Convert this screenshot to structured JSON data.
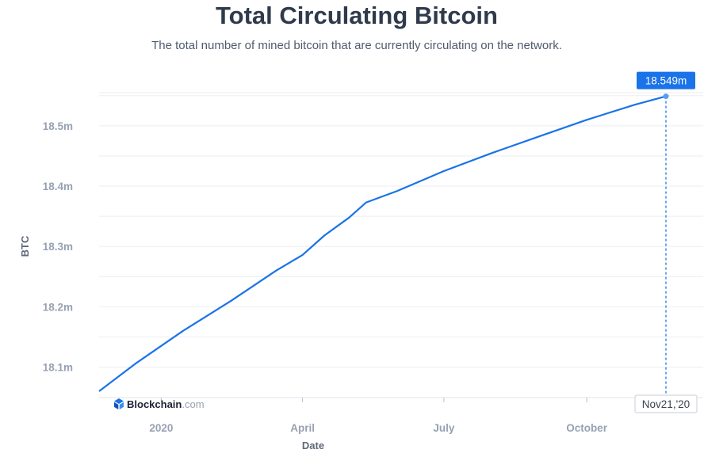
{
  "chart_data": {
    "type": "line",
    "title": "Total Circulating Bitcoin",
    "subtitle": "The total number of mined bitcoin that are currently circulating on the network.",
    "xlabel": "Date",
    "ylabel": "BTC",
    "ylim": [
      18.06,
      18.555
    ],
    "grid": true,
    "legend": "none",
    "x_ticks": [
      {
        "date": "2020-01-01",
        "label": "2020"
      },
      {
        "date": "2020-04-01",
        "label": "April"
      },
      {
        "date": "2020-07-01",
        "label": "July"
      },
      {
        "date": "2020-10-01",
        "label": "October"
      }
    ],
    "y_ticks": [
      {
        "value": 18.1,
        "label": "18.1m"
      },
      {
        "value": 18.2,
        "label": "18.2m"
      },
      {
        "value": 18.3,
        "label": "18.3m"
      },
      {
        "value": 18.4,
        "label": "18.4m"
      },
      {
        "value": 18.5,
        "label": "18.5m"
      }
    ],
    "x_range": [
      "2019-11-22",
      "2020-12-15"
    ],
    "series": [
      {
        "color": "#1a73e8",
        "x": [
          "2019-11-22",
          "2019-12-15",
          "2020-01-15",
          "2020-02-15",
          "2020-03-15",
          "2020-04-01",
          "2020-04-15",
          "2020-05-01",
          "2020-05-12",
          "2020-06-01",
          "2020-07-01",
          "2020-08-01",
          "2020-09-01",
          "2020-10-01",
          "2020-11-01",
          "2020-11-21"
        ],
        "y": [
          18.06,
          18.105,
          18.16,
          18.21,
          18.26,
          18.286,
          18.318,
          18.348,
          18.373,
          18.392,
          18.425,
          18.455,
          18.483,
          18.51,
          18.535,
          18.549
        ]
      }
    ],
    "tooltip": {
      "value": "18.549m",
      "date": "Nov21,'20"
    }
  },
  "branding": {
    "main": "Blockchain",
    "sub": ".com"
  },
  "colors": {
    "line": "#1a73e8",
    "grid": "#eceef2",
    "tooltip_bg": "#1a73e8"
  }
}
